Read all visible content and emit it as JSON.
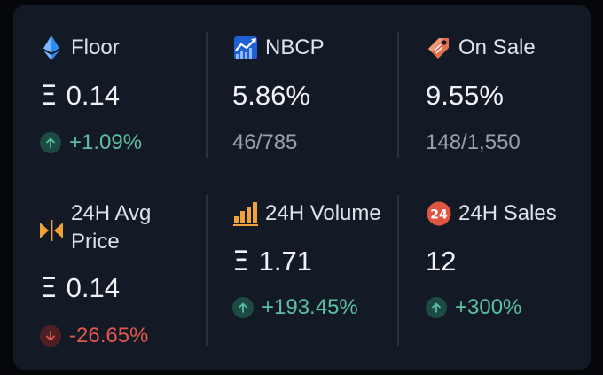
{
  "colors": {
    "card_bg": "#141a25",
    "positive": "#5bbfa0",
    "negative": "#e0574e",
    "muted": "#9aa2ae"
  },
  "stats": {
    "floor": {
      "label": "Floor",
      "icon": "ethereum-icon",
      "currency": "Ξ",
      "value": "0.14",
      "change": "+1.09%",
      "direction": "up"
    },
    "nbcp": {
      "label": "NBCP",
      "icon": "trend-chart-icon",
      "value": "5.86%",
      "ratio": "46/785"
    },
    "on_sale": {
      "label": "On Sale",
      "icon": "price-tag-icon",
      "value": "9.55%",
      "ratio": "148/1,550"
    },
    "avg_price": {
      "label": "24H Avg Price",
      "icon": "average-arrows-icon",
      "currency": "Ξ",
      "value": "0.14",
      "change": "-26.65%",
      "direction": "down"
    },
    "volume": {
      "label": "24H Volume",
      "icon": "bar-chart-icon",
      "currency": "Ξ",
      "value": "1.71",
      "change": "+193.45%",
      "direction": "up"
    },
    "sales": {
      "label": "24H Sales",
      "icon": "24-badge-icon",
      "badge_text": "24",
      "value": "12",
      "change": "+300%",
      "direction": "up"
    }
  }
}
